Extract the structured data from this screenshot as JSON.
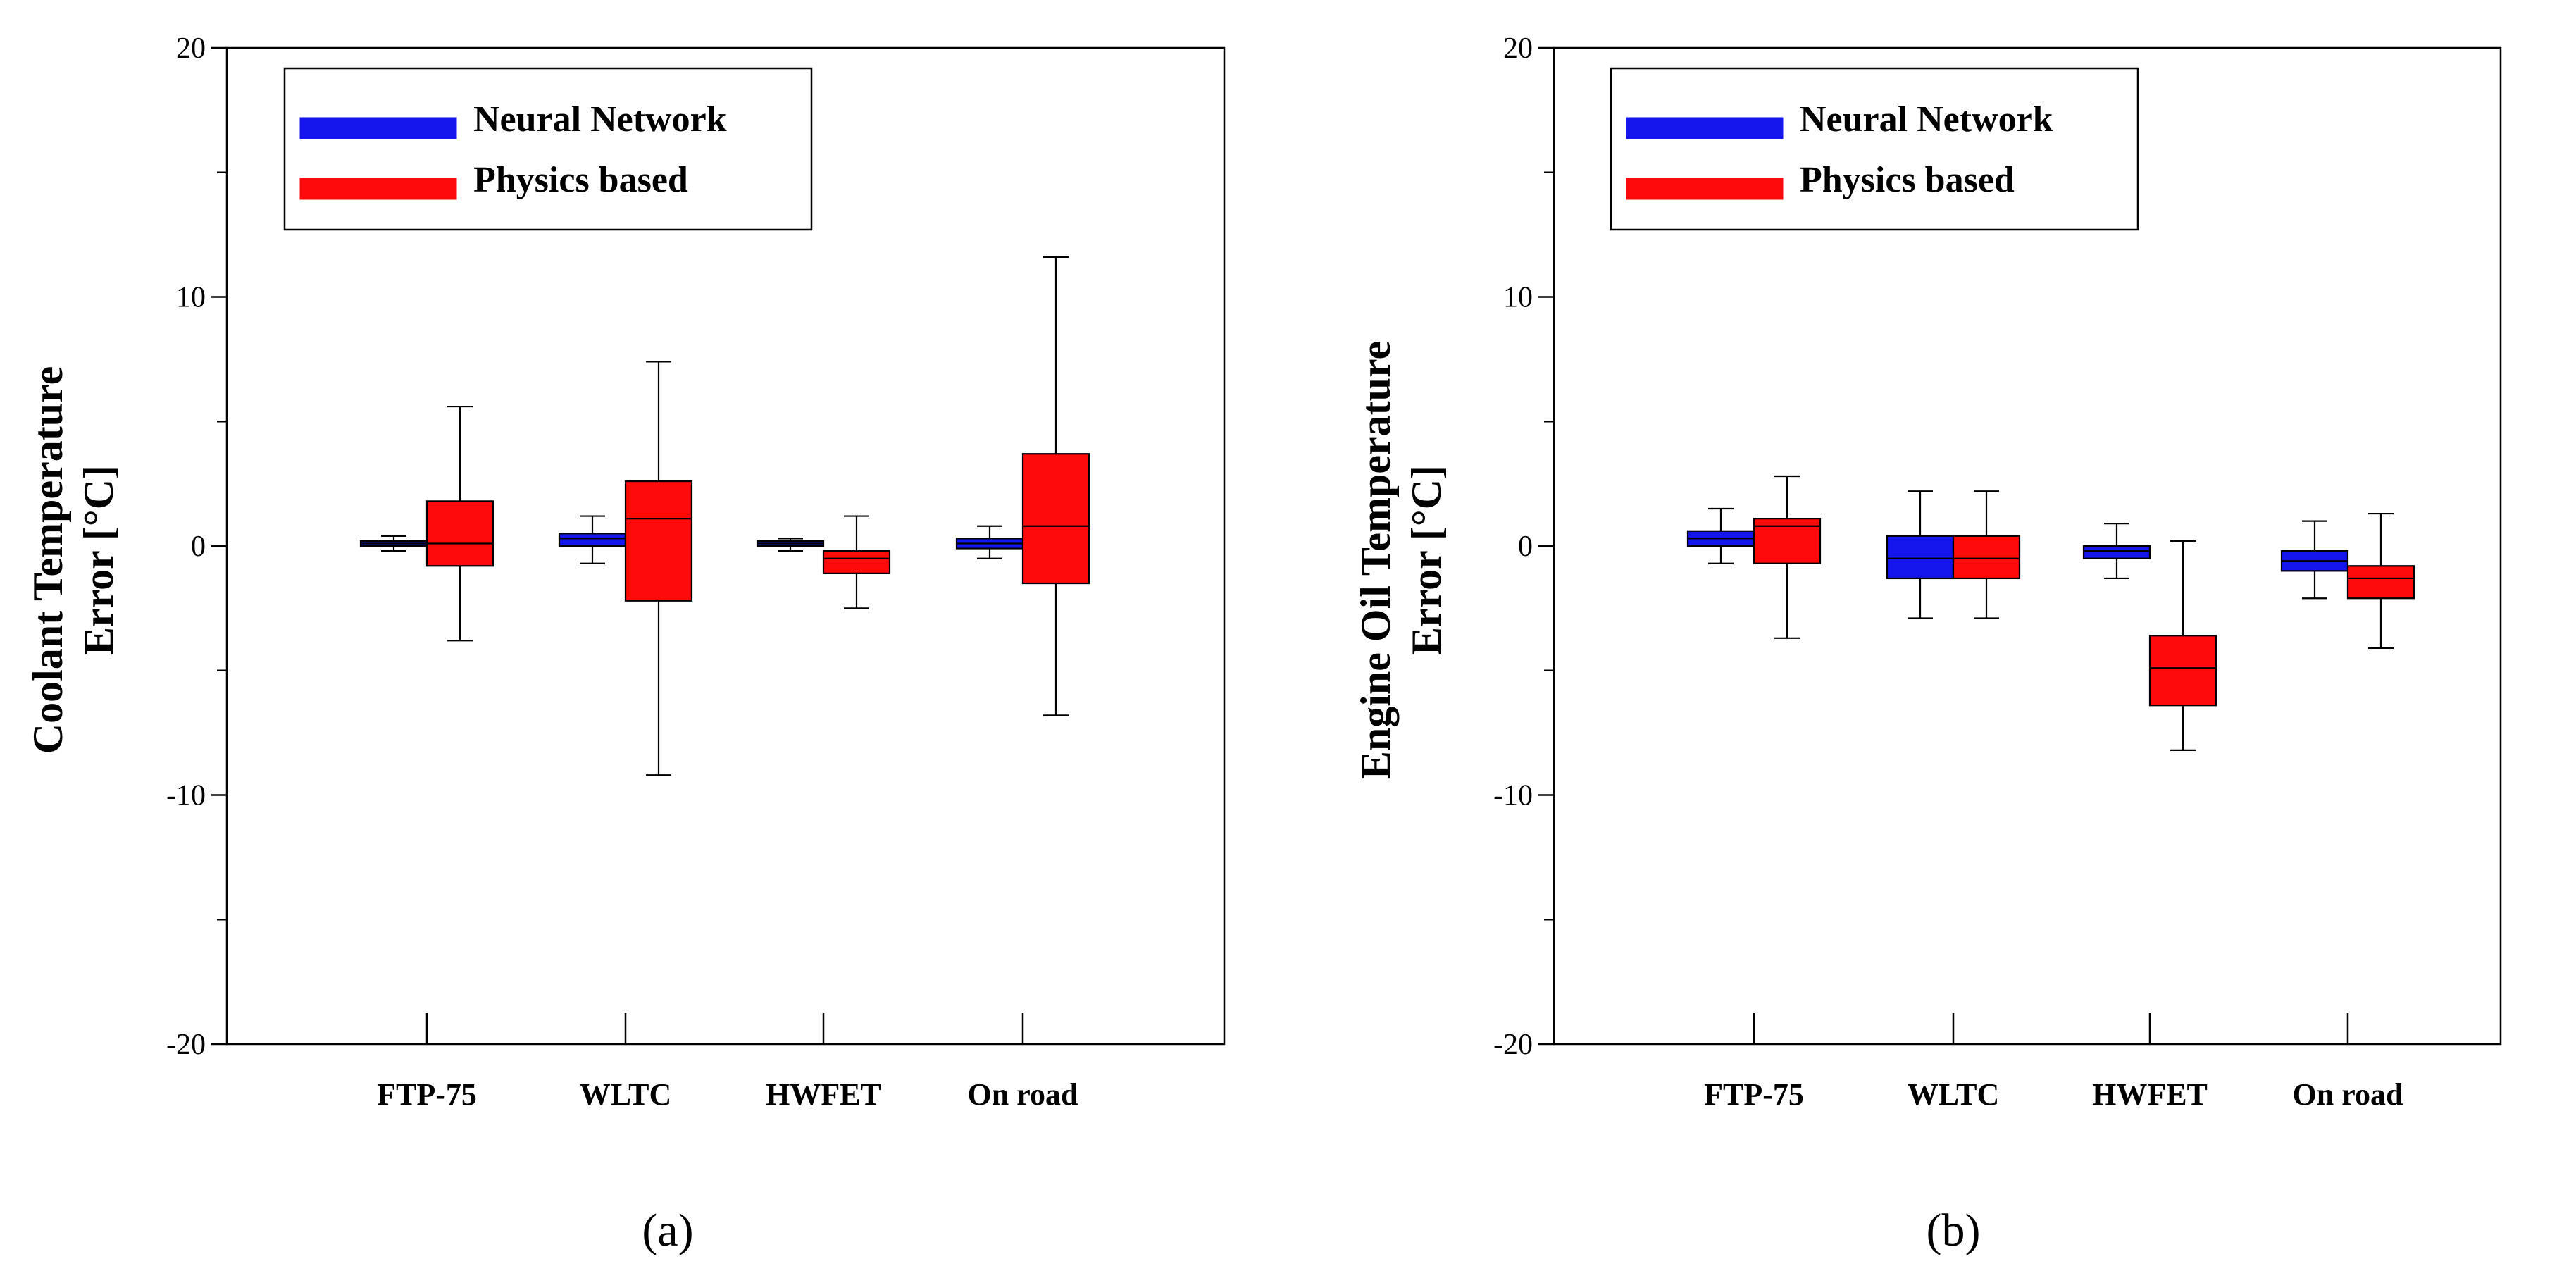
{
  "chart_data": [
    {
      "type": "box",
      "panel_label": "(a)",
      "ylabel_lines": [
        "Coolant Temperature",
        "Error [°C]"
      ],
      "categories": [
        "FTP-75",
        "WLTC",
        "HWFET",
        "On road"
      ],
      "ylim": [
        -20,
        20
      ],
      "yticks": [
        -20,
        -10,
        0,
        10,
        20
      ],
      "legend_position": "top-left",
      "series": [
        {
          "name": "Neural Network",
          "color": "#1515ee",
          "boxes": [
            {
              "whisker_low": -0.2,
              "q1": 0.0,
              "median": 0.1,
              "q3": 0.2,
              "whisker_high": 0.4
            },
            {
              "whisker_low": -0.7,
              "q1": 0.0,
              "median": 0.3,
              "q3": 0.5,
              "whisker_high": 1.2
            },
            {
              "whisker_low": -0.2,
              "q1": 0.0,
              "median": 0.1,
              "q3": 0.2,
              "whisker_high": 0.3
            },
            {
              "whisker_low": -0.5,
              "q1": -0.1,
              "median": 0.1,
              "q3": 0.3,
              "whisker_high": 0.8
            }
          ]
        },
        {
          "name": "Physics based",
          "color": "#ff0a0a",
          "boxes": [
            {
              "whisker_low": -3.8,
              "q1": -0.8,
              "median": 0.1,
              "q3": 1.8,
              "whisker_high": 5.6
            },
            {
              "whisker_low": -9.2,
              "q1": -2.2,
              "median": 1.1,
              "q3": 2.6,
              "whisker_high": 7.4
            },
            {
              "whisker_low": -2.5,
              "q1": -1.1,
              "median": -0.5,
              "q3": -0.2,
              "whisker_high": 1.2
            },
            {
              "whisker_low": -6.8,
              "q1": -1.5,
              "median": 0.8,
              "q3": 3.7,
              "whisker_high": 11.6
            }
          ]
        }
      ]
    },
    {
      "type": "box",
      "panel_label": "(b)",
      "ylabel_lines": [
        "Engine Oil Temperature",
        "Error [°C]"
      ],
      "categories": [
        "FTP-75",
        "WLTC",
        "HWFET",
        "On road"
      ],
      "ylim": [
        -20,
        20
      ],
      "yticks": [
        -20,
        -10,
        0,
        10,
        20
      ],
      "legend_position": "top-left",
      "series": [
        {
          "name": "Neural Network",
          "color": "#1515ee",
          "boxes": [
            {
              "whisker_low": -0.7,
              "q1": 0.0,
              "median": 0.3,
              "q3": 0.6,
              "whisker_high": 1.5
            },
            {
              "whisker_low": -2.9,
              "q1": -1.3,
              "median": -0.5,
              "q3": 0.4,
              "whisker_high": 2.2
            },
            {
              "whisker_low": -1.3,
              "q1": -0.5,
              "median": -0.2,
              "q3": 0.0,
              "whisker_high": 0.9
            },
            {
              "whisker_low": -2.1,
              "q1": -1.0,
              "median": -0.6,
              "q3": -0.2,
              "whisker_high": 1.0
            }
          ]
        },
        {
          "name": "Physics based",
          "color": "#ff0a0a",
          "boxes": [
            {
              "whisker_low": -3.7,
              "q1": -0.7,
              "median": 0.8,
              "q3": 1.1,
              "whisker_high": 2.8
            },
            {
              "whisker_low": -2.9,
              "q1": -1.3,
              "median": -0.5,
              "q3": 0.4,
              "whisker_high": 2.2
            },
            {
              "whisker_low": -8.2,
              "q1": -6.4,
              "median": -4.9,
              "q3": -3.6,
              "whisker_high": 0.2
            },
            {
              "whisker_low": -4.1,
              "q1": -2.1,
              "median": -1.3,
              "q3": -0.8,
              "whisker_high": 1.3
            }
          ]
        }
      ]
    }
  ]
}
